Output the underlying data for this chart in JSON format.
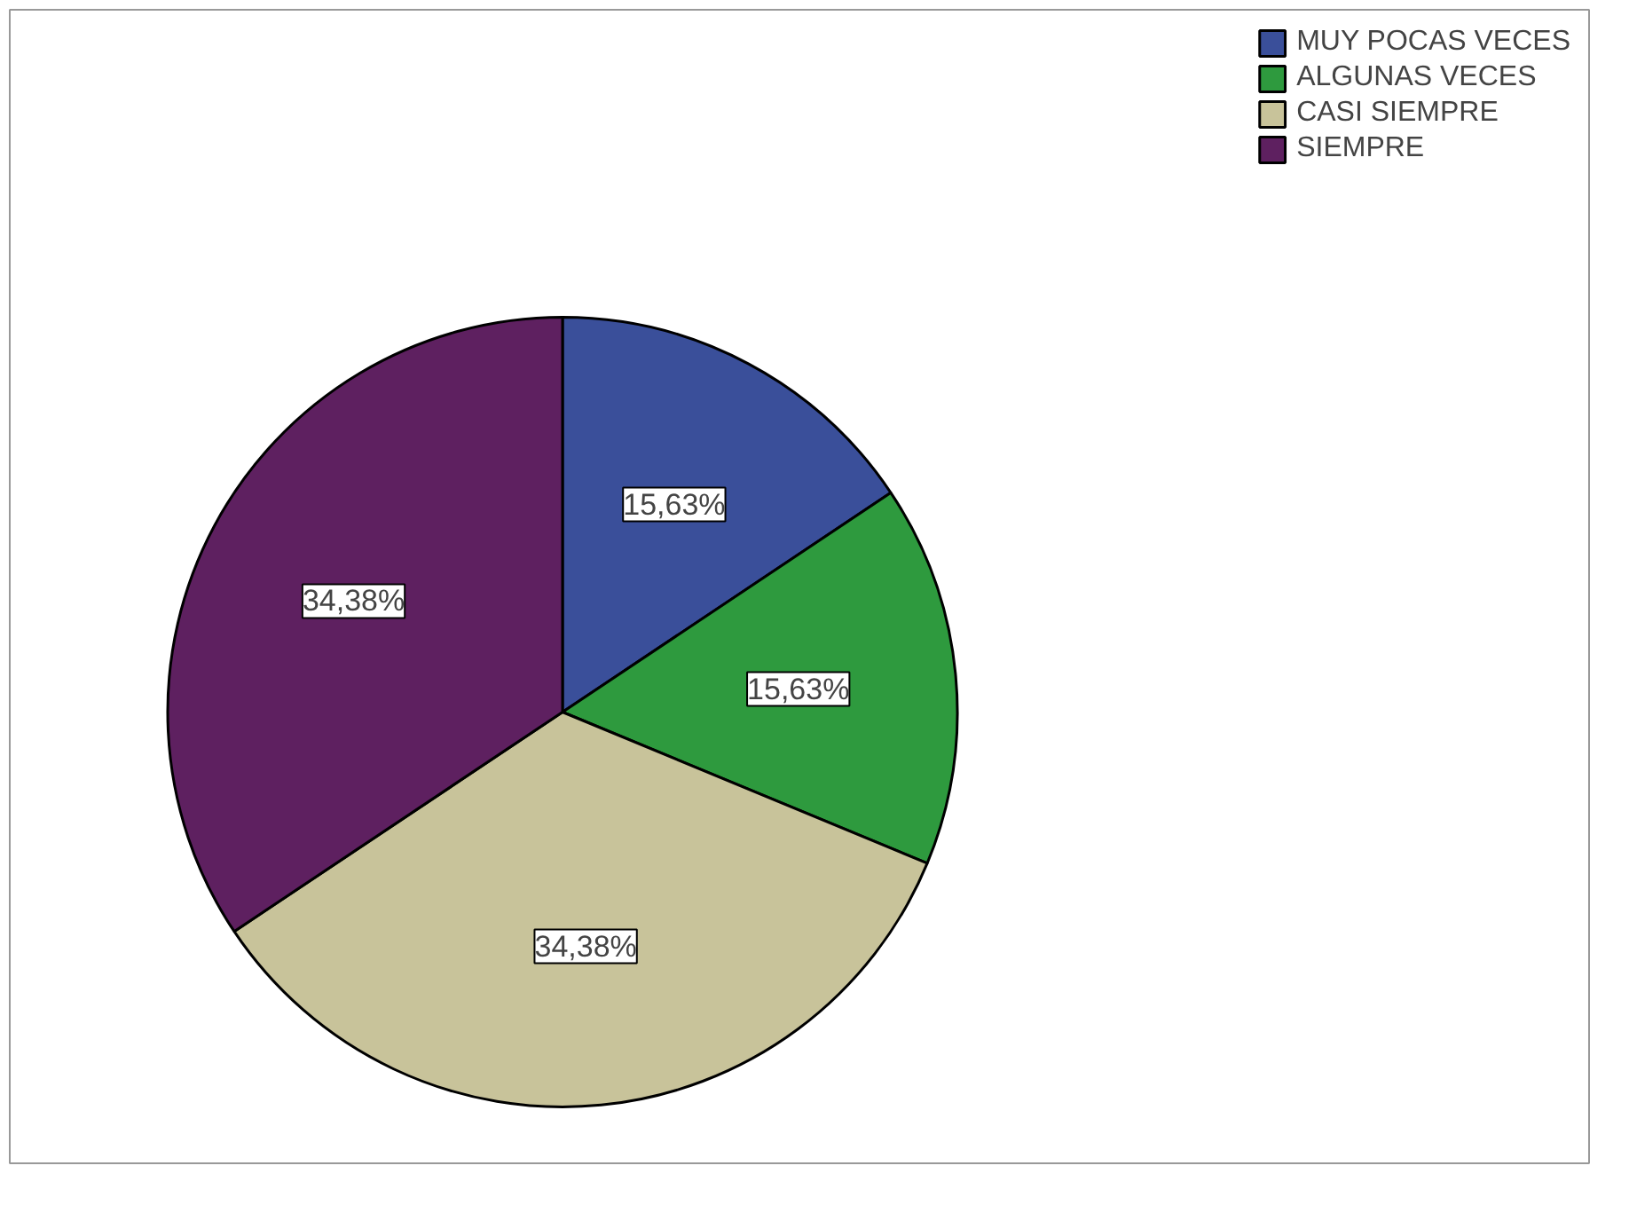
{
  "chart_data": {
    "type": "pie",
    "categories": [
      "MUY POCAS VECES",
      "ALGUNAS VECES",
      "CASI SIEMPRE",
      "SIEMPRE"
    ],
    "values": [
      15.63,
      15.63,
      34.38,
      34.38
    ],
    "colors": [
      "#3a4f9a",
      "#2e9a3e",
      "#c8c39a",
      "#5e2060"
    ],
    "value_labels": [
      "15,63%",
      "15,63%",
      "34,38%",
      "34,38%"
    ],
    "legend": "top right"
  }
}
